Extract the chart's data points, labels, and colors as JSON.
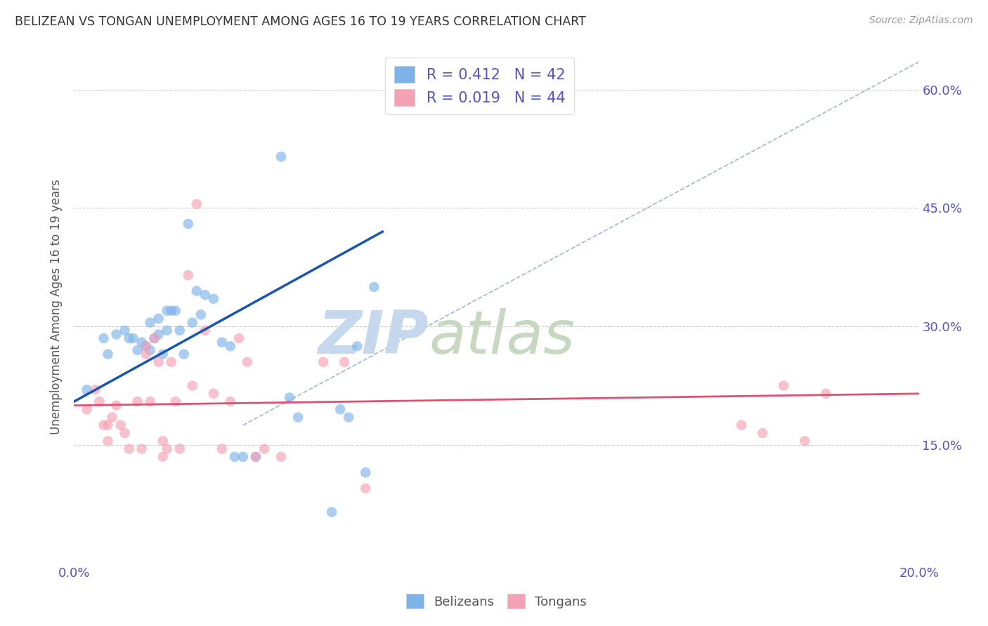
{
  "title": "BELIZEAN VS TONGAN UNEMPLOYMENT AMONG AGES 16 TO 19 YEARS CORRELATION CHART",
  "source": "Source: ZipAtlas.com",
  "ylabel": "Unemployment Among Ages 16 to 19 years",
  "xlim": [
    0.0,
    0.2
  ],
  "ylim": [
    0.0,
    0.65
  ],
  "xticks": [
    0.0,
    0.025,
    0.05,
    0.075,
    0.1,
    0.125,
    0.15,
    0.175,
    0.2
  ],
  "xticklabels_show": {
    "0.0": "0.0%",
    "0.20": "20.0%"
  },
  "yticks": [
    0.0,
    0.15,
    0.3,
    0.45,
    0.6
  ],
  "yticklabels_right": [
    "",
    "15.0%",
    "30.0%",
    "45.0%",
    "60.0%"
  ],
  "legend_label1": "R = 0.412   N = 42",
  "legend_label2": "R = 0.019   N = 44",
  "legend_bottom1": "Belizeans",
  "legend_bottom2": "Tongans",
  "belizean_color": "#7eb3e8",
  "tongan_color": "#f4a0b5",
  "blue_line_color": "#1a56b0",
  "pink_line_color": "#e05070",
  "dashed_line_color": "#a0b8d0",
  "watermark_zip_color": "#c8d8ee",
  "watermark_atlas_color": "#c8d8c8",
  "title_color": "#333333",
  "axis_color": "#5555bb",
  "grid_color": "#cccccc",
  "belizean_x": [
    0.003,
    0.007,
    0.008,
    0.01,
    0.012,
    0.013,
    0.014,
    0.015,
    0.016,
    0.017,
    0.018,
    0.018,
    0.019,
    0.02,
    0.02,
    0.021,
    0.022,
    0.022,
    0.023,
    0.024,
    0.025,
    0.026,
    0.027,
    0.028,
    0.029,
    0.03,
    0.031,
    0.033,
    0.035,
    0.037,
    0.038,
    0.04,
    0.043,
    0.049,
    0.051,
    0.053,
    0.061,
    0.063,
    0.065,
    0.067,
    0.069,
    0.071
  ],
  "belizean_y": [
    0.22,
    0.285,
    0.265,
    0.29,
    0.295,
    0.285,
    0.285,
    0.27,
    0.28,
    0.275,
    0.305,
    0.27,
    0.285,
    0.31,
    0.29,
    0.265,
    0.32,
    0.295,
    0.32,
    0.32,
    0.295,
    0.265,
    0.43,
    0.305,
    0.345,
    0.315,
    0.34,
    0.335,
    0.28,
    0.275,
    0.135,
    0.135,
    0.135,
    0.515,
    0.21,
    0.185,
    0.065,
    0.195,
    0.185,
    0.275,
    0.115,
    0.35
  ],
  "tongan_x": [
    0.003,
    0.005,
    0.006,
    0.007,
    0.008,
    0.008,
    0.009,
    0.01,
    0.011,
    0.012,
    0.013,
    0.015,
    0.016,
    0.017,
    0.017,
    0.018,
    0.019,
    0.02,
    0.021,
    0.021,
    0.022,
    0.023,
    0.024,
    0.025,
    0.027,
    0.028,
    0.029,
    0.031,
    0.033,
    0.035,
    0.037,
    0.039,
    0.041,
    0.043,
    0.045,
    0.049,
    0.059,
    0.064,
    0.069,
    0.158,
    0.163,
    0.168,
    0.173,
    0.178
  ],
  "tongan_y": [
    0.195,
    0.22,
    0.205,
    0.175,
    0.155,
    0.175,
    0.185,
    0.2,
    0.175,
    0.165,
    0.145,
    0.205,
    0.145,
    0.265,
    0.275,
    0.205,
    0.285,
    0.255,
    0.135,
    0.155,
    0.145,
    0.255,
    0.205,
    0.145,
    0.365,
    0.225,
    0.455,
    0.295,
    0.215,
    0.145,
    0.205,
    0.285,
    0.255,
    0.135,
    0.145,
    0.135,
    0.255,
    0.255,
    0.095,
    0.175,
    0.165,
    0.225,
    0.155,
    0.215
  ],
  "blue_trendline_x": [
    0.0,
    0.073
  ],
  "blue_trendline_y": [
    0.205,
    0.42
  ],
  "pink_trendline_x": [
    0.0,
    0.2
  ],
  "pink_trendline_y": [
    0.2,
    0.215
  ],
  "dashed_line_x": [
    0.04,
    0.2
  ],
  "dashed_line_y": [
    0.175,
    0.635
  ],
  "marker_size": 110
}
